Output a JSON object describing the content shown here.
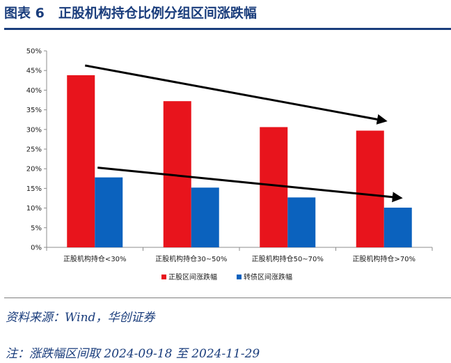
{
  "figure": {
    "number_label": "图表 6",
    "title": "正股机构持仓比例分组区间涨跌幅"
  },
  "chart_data": {
    "type": "bar",
    "title": "正股机构持仓比例分组区间涨跌幅",
    "categories": [
      "正股机构持仓<30%",
      "正股机构持仓30~50%",
      "正股机构持仓50~70%",
      "正股机构持仓>70%"
    ],
    "series": [
      {
        "name": "正股区间涨跌幅",
        "color": "#e8141c",
        "values": [
          43.8,
          37.2,
          30.6,
          29.7
        ]
      },
      {
        "name": "转债区间涨跌幅",
        "color": "#0b62be",
        "values": [
          17.8,
          15.2,
          12.7,
          10.1
        ]
      }
    ],
    "y_ticks": [
      "0%",
      "5%",
      "10%",
      "15%",
      "20%",
      "25%",
      "30%",
      "35%",
      "40%",
      "45%",
      "50%"
    ],
    "ylim": [
      0,
      50
    ],
    "ytick_step": 5,
    "xlabel": "",
    "ylabel": "",
    "grid": false,
    "legend_position": "bottom",
    "annotations": [
      {
        "type": "trend-arrow",
        "series": "正股区间涨跌幅",
        "direction": "down"
      },
      {
        "type": "trend-arrow",
        "series": "转债区间涨跌幅",
        "direction": "down"
      }
    ]
  },
  "notes": {
    "source": "资料来源：Wind，华创证券",
    "remark": "注：涨跌幅区间取 2024-09-18 至 2024-11-29"
  }
}
